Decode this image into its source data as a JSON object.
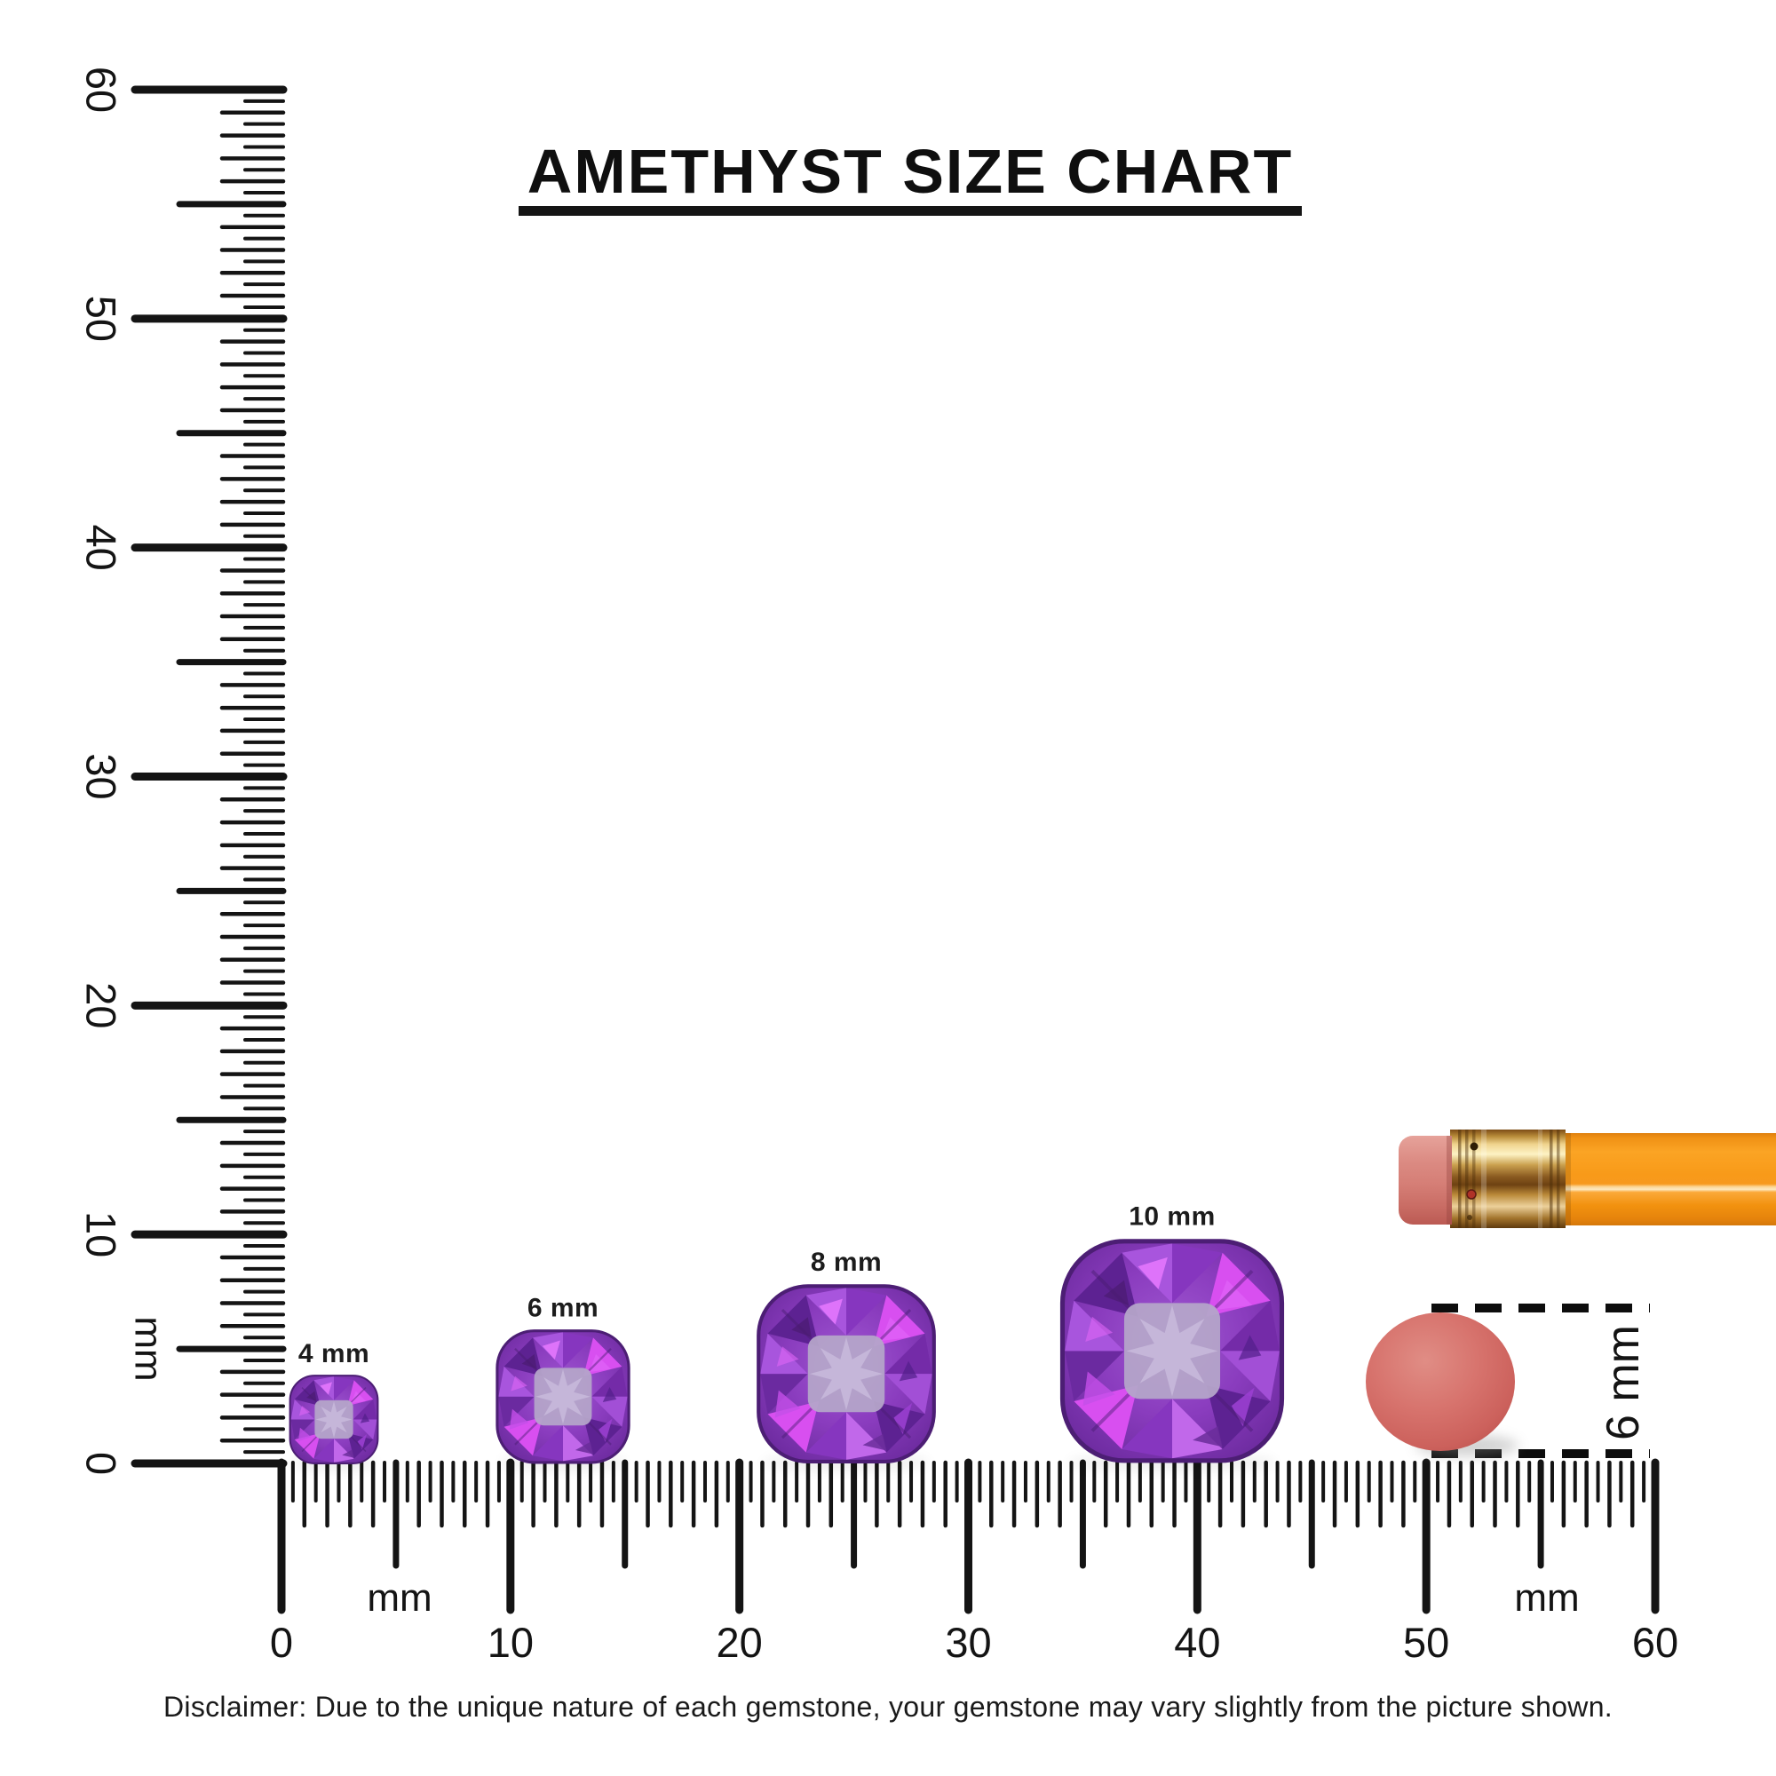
{
  "title": "AMETHYST SIZE CHART",
  "disclaimer": "Disclaimer: Due to the unique nature of each gemstone, your gemstone may vary slightly from the picture shown.",
  "rulers": {
    "vertical": {
      "unit_label": "mm",
      "tick_labels": [
        "0",
        "10",
        "20",
        "30",
        "40",
        "50",
        "60"
      ],
      "range_mm": [
        0,
        60
      ],
      "tick_resolution_mm": 0.5
    },
    "horizontal": {
      "unit_labels": [
        "mm",
        "mm"
      ],
      "tick_labels": [
        "0",
        "10",
        "20",
        "30",
        "40",
        "50",
        "60"
      ],
      "range_mm": [
        0,
        60
      ],
      "tick_resolution_mm": 0.5
    }
  },
  "gems": [
    {
      "label": "4 mm",
      "size_mm": 4
    },
    {
      "label": "6 mm",
      "size_mm": 6
    },
    {
      "label": "8 mm",
      "size_mm": 8
    },
    {
      "label": "10 mm",
      "size_mm": 10
    }
  ],
  "eraser_measure": {
    "label": "6 mm",
    "diameter_mm": 6
  },
  "illustrations": [
    "pencil",
    "round-eraser"
  ],
  "colors": {
    "ink": "#141414",
    "amethyst_dark": "#5d2292",
    "amethyst_mid": "#8a3cbe",
    "amethyst_bright": "#d84ff0",
    "amethyst_table": "#b4a4c9",
    "pencil_orange": "#f89b1b",
    "ferrule_gold": "#d8a849",
    "pencil_eraser_pink": "#d8837b",
    "round_eraser_pink": "#d56f6a"
  }
}
